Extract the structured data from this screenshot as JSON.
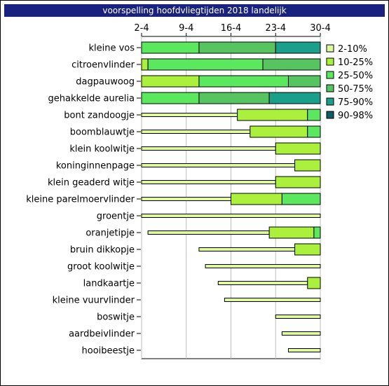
{
  "chart_data": {
    "type": "bar",
    "title": "voorspelling hoofdvliegtijden 2018 landelijk",
    "x_ticks": [
      "2-4",
      "9-4",
      "16-4",
      "23-4",
      "30-4"
    ],
    "x_tick_days": [
      0,
      7,
      14,
      21,
      28
    ],
    "xlim_days": [
      0,
      28
    ],
    "grid": true,
    "legend_position": "right",
    "legend": [
      {
        "key": "p2_10",
        "label": "2-10%",
        "color": "#ddfa9c"
      },
      {
        "key": "p10_25",
        "label": "10-25%",
        "color": "#aaf03c"
      },
      {
        "key": "p25_50",
        "label": "25-50%",
        "color": "#5be85f"
      },
      {
        "key": "p50_75",
        "label": "50-75%",
        "color": "#57c462"
      },
      {
        "key": "p75_90",
        "label": "75-90%",
        "color": "#1aa08a"
      },
      {
        "key": "p90_98",
        "label": "90-98%",
        "color": "#0e5c64"
      }
    ],
    "species": [
      {
        "name": "kleine vos",
        "segments": [
          [
            "p25_50",
            0,
            9
          ],
          [
            "p50_75",
            9,
            21
          ],
          [
            "p75_90",
            21,
            28
          ]
        ]
      },
      {
        "name": "citroenvlinder",
        "segments": [
          [
            "p10_25",
            0,
            1
          ],
          [
            "p25_50",
            1,
            19
          ],
          [
            "p50_75",
            19,
            28
          ]
        ]
      },
      {
        "name": "dagpauwoog",
        "segments": [
          [
            "p10_25",
            0,
            9
          ],
          [
            "p25_50",
            9,
            23
          ],
          [
            "p50_75",
            23,
            28
          ]
        ]
      },
      {
        "name": "gehakkelde aurelia",
        "segments": [
          [
            "p25_50",
            0,
            9
          ],
          [
            "p50_75",
            9,
            20
          ],
          [
            "p75_90",
            20,
            28
          ]
        ]
      },
      {
        "name": "bont zandoogje",
        "segments": [
          [
            "p2_10",
            0,
            15
          ],
          [
            "p10_25",
            15,
            26
          ],
          [
            "p25_50",
            26,
            28
          ]
        ]
      },
      {
        "name": "boomblauwtje",
        "segments": [
          [
            "p2_10",
            0,
            17
          ],
          [
            "p10_25",
            17,
            26
          ],
          [
            "p25_50",
            26,
            28
          ]
        ]
      },
      {
        "name": "klein koolwitje",
        "segments": [
          [
            "p2_10",
            0,
            21
          ],
          [
            "p10_25",
            21,
            28
          ]
        ]
      },
      {
        "name": "koninginnenpage",
        "segments": [
          [
            "p2_10",
            0,
            24
          ],
          [
            "p10_25",
            24,
            28
          ]
        ]
      },
      {
        "name": "klein geaderd witje",
        "segments": [
          [
            "p2_10",
            0,
            21
          ],
          [
            "p10_25",
            21,
            28
          ]
        ]
      },
      {
        "name": "kleine parelmoervlinder",
        "segments": [
          [
            "p2_10",
            0,
            14
          ],
          [
            "p10_25",
            14,
            22
          ],
          [
            "p25_50",
            22,
            28
          ]
        ]
      },
      {
        "name": "groentje",
        "segments": [
          [
            "p2_10",
            0,
            28
          ]
        ]
      },
      {
        "name": "oranjetipje",
        "segments": [
          [
            "p2_10",
            1,
            20
          ],
          [
            "p10_25",
            20,
            27
          ],
          [
            "p25_50",
            27,
            28
          ]
        ]
      },
      {
        "name": "bruin dikkopje",
        "segments": [
          [
            "p2_10",
            9,
            24
          ],
          [
            "p10_25",
            24,
            28
          ]
        ]
      },
      {
        "name": "groot koolwitje",
        "segments": [
          [
            "p2_10",
            10,
            28
          ]
        ]
      },
      {
        "name": "landkaartje",
        "segments": [
          [
            "p2_10",
            12,
            26
          ],
          [
            "p10_25",
            26,
            28
          ]
        ]
      },
      {
        "name": "kleine vuurvlinder",
        "segments": [
          [
            "p2_10",
            13,
            28
          ]
        ]
      },
      {
        "name": "boswitje",
        "segments": [
          [
            "p2_10",
            21,
            28
          ]
        ]
      },
      {
        "name": "aardbeivlinder",
        "segments": [
          [
            "p2_10",
            22,
            28
          ]
        ]
      },
      {
        "name": "hooibeestje",
        "segments": [
          [
            "p2_10",
            23,
            28
          ]
        ]
      }
    ]
  }
}
